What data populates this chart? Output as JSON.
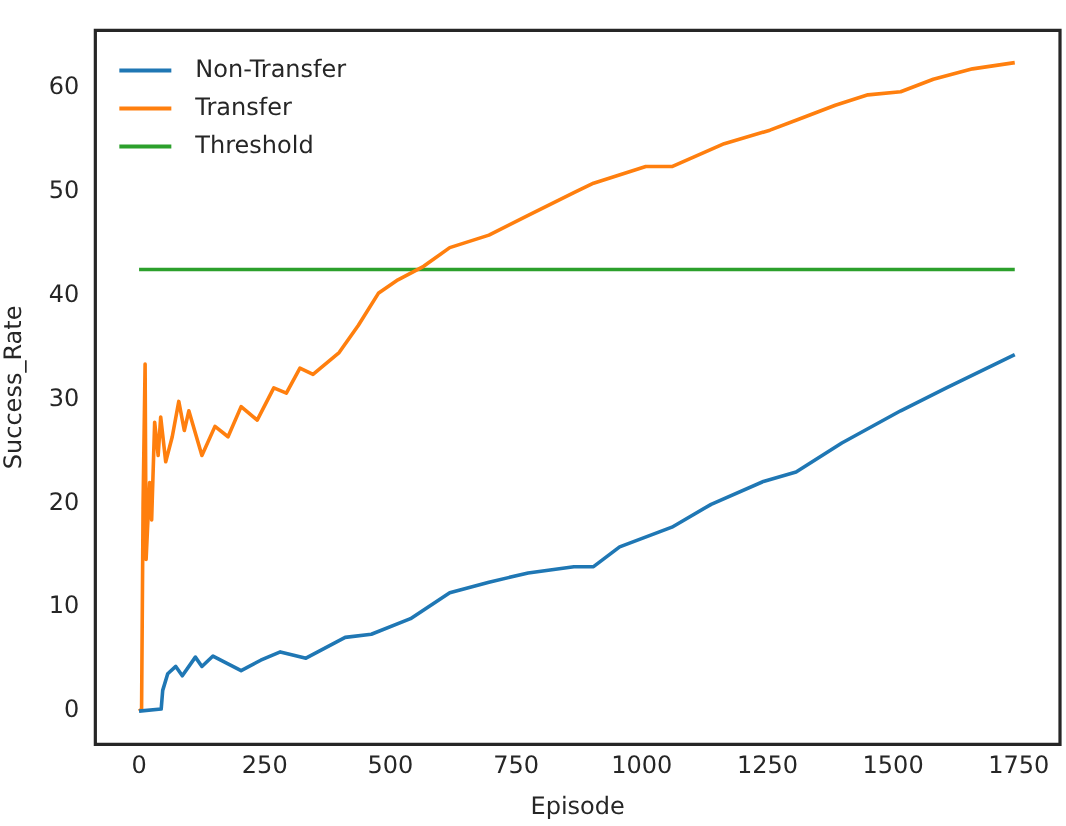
{
  "chart_data": {
    "type": "line",
    "xlabel": "Episode",
    "ylabel": "Success_Rate",
    "xlim": [
      -87,
      1832
    ],
    "ylim": [
      -3.2,
      65.5
    ],
    "xticks": [
      0,
      250,
      500,
      750,
      1000,
      1250,
      1500,
      1750
    ],
    "yticks": [
      0,
      10,
      20,
      30,
      40,
      50,
      60
    ],
    "grid": false,
    "legend": "top left",
    "marker": "none",
    "line_style": "solid",
    "series": [
      {
        "name": "Non-Transfer",
        "color": "#1f77b4",
        "x": [
          0,
          44,
          47,
          57,
          73,
          86,
          112,
          125,
          147,
          203,
          242,
          281,
          332,
          410,
          462,
          540,
          618,
          696,
          774,
          865,
          904,
          956,
          1060,
          1138,
          1242,
          1307,
          1398,
          1515,
          1606,
          1742
        ],
        "values": [
          0,
          0.2,
          2,
          3.6,
          4.3,
          3.4,
          5.2,
          4.3,
          5.3,
          3.9,
          4.9,
          5.7,
          5.1,
          7.1,
          7.4,
          8.9,
          11.4,
          12.4,
          13.3,
          13.9,
          13.9,
          15.8,
          17.7,
          19.9,
          22.1,
          23,
          25.8,
          28.9,
          31.1,
          34.3
        ]
      },
      {
        "name": "Transfer",
        "color": "#ff7f0e",
        "x": [
          0,
          5,
          8,
          12,
          14,
          21,
          25,
          31,
          38,
          43,
          53,
          66,
          79,
          90,
          99,
          125,
          151,
          177,
          203,
          235,
          268,
          293,
          320,
          346,
          398,
          436,
          476,
          515,
          566,
          618,
          696,
          774,
          865,
          904,
          1008,
          1060,
          1164,
          1255,
          1320,
          1385,
          1450,
          1515,
          1580,
          1658,
          1742
        ],
        "values": [
          0,
          0.2,
          20,
          33.4,
          14.6,
          22,
          18.4,
          27.8,
          24.6,
          28.3,
          24,
          26.4,
          29.8,
          27,
          28.9,
          24.6,
          27.4,
          26.4,
          29.3,
          28,
          31.1,
          30.6,
          33,
          32.4,
          34.5,
          37.1,
          40.2,
          41.5,
          42.8,
          44.6,
          45.8,
          47.7,
          49.9,
          50.8,
          52.4,
          52.4,
          54.6,
          55.9,
          57.1,
          58.3,
          59.3,
          59.6,
          60.8,
          61.8,
          62.4
        ]
      },
      {
        "name": "Threshold",
        "color": "#2ca02c",
        "x": [
          0,
          1742
        ],
        "values": [
          42.5,
          42.5
        ]
      }
    ]
  }
}
